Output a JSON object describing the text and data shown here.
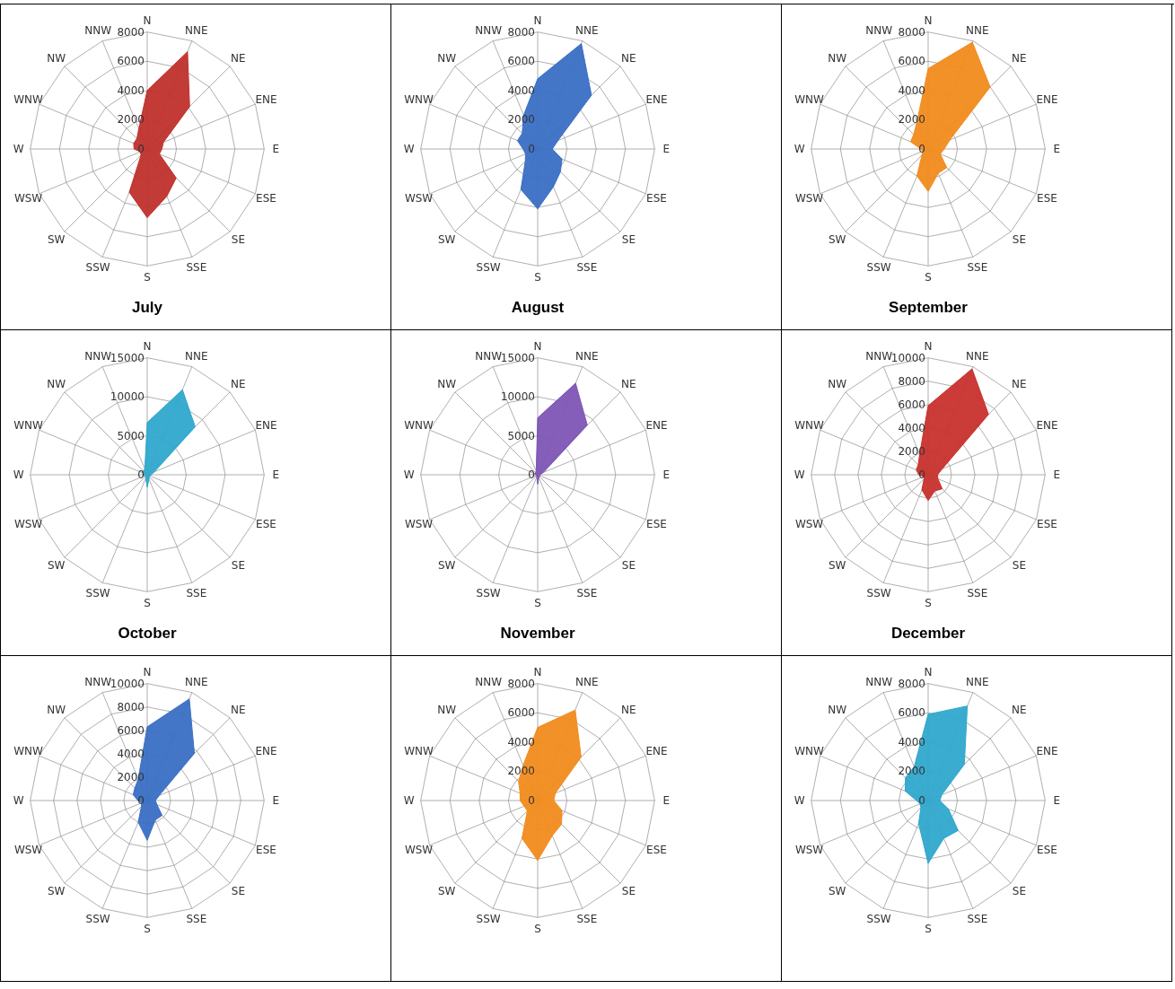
{
  "chart_data": [
    {
      "type": "radar",
      "title": "July",
      "categories": [
        "N",
        "NNE",
        "NE",
        "ENE",
        "E",
        "ESE",
        "SE",
        "SSE",
        "S",
        "SSW",
        "SW",
        "WSW",
        "W",
        "WNW",
        "NW",
        "NNW"
      ],
      "ylim": [
        0,
        8000
      ],
      "yticks": [
        0,
        2000,
        4000,
        6000,
        8000
      ],
      "grid": true,
      "series": [
        {
          "color": "#c0302c",
          "values": [
            4000,
            7200,
            4100,
            1200,
            1000,
            900,
            2800,
            3500,
            4700,
            3200,
            600,
            500,
            900,
            1000,
            1000,
            1500
          ]
        }
      ]
    },
    {
      "type": "radar",
      "title": "August",
      "categories": [
        "N",
        "NNE",
        "NE",
        "ENE",
        "E",
        "ESE",
        "SE",
        "SSE",
        "S",
        "SSW",
        "SW",
        "WSW",
        "W",
        "WNW",
        "NW",
        "NNW"
      ],
      "ylim": [
        0,
        8000
      ],
      "yticks": [
        0,
        2000,
        4000,
        6000,
        8000
      ],
      "grid": true,
      "series": [
        {
          "color": "#3a6fc4",
          "values": [
            4800,
            7800,
            5200,
            1500,
            1000,
            1800,
            2200,
            2800,
            4100,
            3000,
            1200,
            900,
            1000,
            1500,
            1500,
            2500
          ]
        }
      ]
    },
    {
      "type": "radar",
      "title": "September",
      "categories": [
        "N",
        "NNE",
        "NE",
        "ENE",
        "E",
        "ESE",
        "SE",
        "SSE",
        "S",
        "SSW",
        "SW",
        "WSW",
        "W",
        "WNW",
        "NW",
        "NNW"
      ],
      "ylim": [
        0,
        8000
      ],
      "yticks": [
        0,
        2000,
        4000,
        6000,
        8000
      ],
      "grid": true,
      "series": [
        {
          "color": "#f28b1e",
          "values": [
            5500,
            7900,
            6000,
            1600,
            1100,
            900,
            1800,
            1800,
            2900,
            2000,
            600,
            400,
            500,
            1300,
            1400,
            2000
          ]
        }
      ]
    },
    {
      "type": "radar",
      "title": "October",
      "categories": [
        "N",
        "NNE",
        "NE",
        "ENE",
        "E",
        "ESE",
        "SE",
        "SSE",
        "S",
        "SSW",
        "SW",
        "WSW",
        "W",
        "WNW",
        "NW",
        "NNW"
      ],
      "ylim": [
        0,
        15000
      ],
      "yticks": [
        0,
        5000,
        10000,
        15000
      ],
      "grid": true,
      "series": [
        {
          "color": "#2fa8cc",
          "values": [
            6700,
            11800,
            8700,
            1000,
            500,
            400,
            400,
            600,
            1600,
            500,
            300,
            300,
            500,
            600,
            700,
            800
          ]
        }
      ]
    },
    {
      "type": "radar",
      "title": "November",
      "categories": [
        "N",
        "NNE",
        "NE",
        "ENE",
        "E",
        "ESE",
        "SE",
        "SSE",
        "S",
        "SSW",
        "SW",
        "WSW",
        "W",
        "WNW",
        "NW",
        "NNW"
      ],
      "ylim": [
        0,
        15000
      ],
      "yticks": [
        0,
        5000,
        10000,
        15000
      ],
      "grid": true,
      "series": [
        {
          "color": "#7d55b5",
          "values": [
            7300,
            12700,
            9000,
            800,
            300,
            300,
            300,
            400,
            1200,
            300,
            200,
            200,
            300,
            400,
            400,
            500
          ]
        }
      ]
    },
    {
      "type": "radar",
      "title": "December",
      "categories": [
        "N",
        "NNE",
        "NE",
        "ENE",
        "E",
        "ESE",
        "SE",
        "SSE",
        "S",
        "SSW",
        "SW",
        "WSW",
        "W",
        "WNW",
        "NW",
        "NNW"
      ],
      "ylim": [
        0,
        10000
      ],
      "yticks": [
        0,
        2000,
        4000,
        6000,
        8000,
        10000
      ],
      "grid": true,
      "series": [
        {
          "color": "#c8302c",
          "values": [
            5900,
            9800,
            7300,
            1300,
            800,
            900,
            1700,
            1500,
            2200,
            1400,
            500,
            400,
            800,
            1100,
            1200,
            1900
          ]
        }
      ]
    },
    {
      "type": "radar",
      "categories": [
        "N",
        "NNE",
        "NE",
        "ENE",
        "E",
        "ESE",
        "SE",
        "SSE",
        "S",
        "SSW",
        "SW",
        "WSW",
        "W",
        "WNW",
        "NW",
        "NNW"
      ],
      "ylim": [
        0,
        10000
      ],
      "yticks": [
        0,
        2000,
        4000,
        6000,
        8000,
        10000
      ],
      "grid": true,
      "series": [
        {
          "color": "#3a6fc4",
          "values": [
            6300,
            9400,
            5700,
            1100,
            700,
            900,
            1800,
            1800,
            3400,
            2000,
            700,
            500,
            800,
            1300,
            1500,
            2000
          ]
        }
      ]
    },
    {
      "type": "radar",
      "categories": [
        "N",
        "NNE",
        "NE",
        "ENE",
        "E",
        "ESE",
        "SE",
        "SSE",
        "S",
        "SSW",
        "SW",
        "WSW",
        "W",
        "WNW",
        "NW",
        "NNW"
      ],
      "ylim": [
        0,
        8000
      ],
      "yticks": [
        0,
        2000,
        4000,
        6000,
        8000
      ],
      "grid": true,
      "series": [
        {
          "color": "#f28b1e",
          "values": [
            5000,
            6700,
            4200,
            1300,
            1100,
            1800,
            2300,
            2600,
            4100,
            2800,
            1000,
            1000,
            1200,
            1300,
            1850,
            2600
          ]
        }
      ]
    },
    {
      "type": "radar",
      "categories": [
        "N",
        "NNE",
        "NE",
        "ENE",
        "E",
        "ESE",
        "SE",
        "SSE",
        "S",
        "SSW",
        "SW",
        "WSW",
        "W",
        "WNW",
        "NW",
        "NNW"
      ],
      "ylim": [
        0,
        8000
      ],
      "yticks": [
        0,
        2000,
        4000,
        6000,
        8000
      ],
      "grid": true,
      "series": [
        {
          "color": "#2fa8cc",
          "values": [
            5900,
            7000,
            3500,
            1000,
            800,
            1500,
            2900,
            2800,
            4300,
            1700,
            700,
            600,
            800,
            1700,
            2200,
            2500
          ]
        }
      ]
    }
  ]
}
